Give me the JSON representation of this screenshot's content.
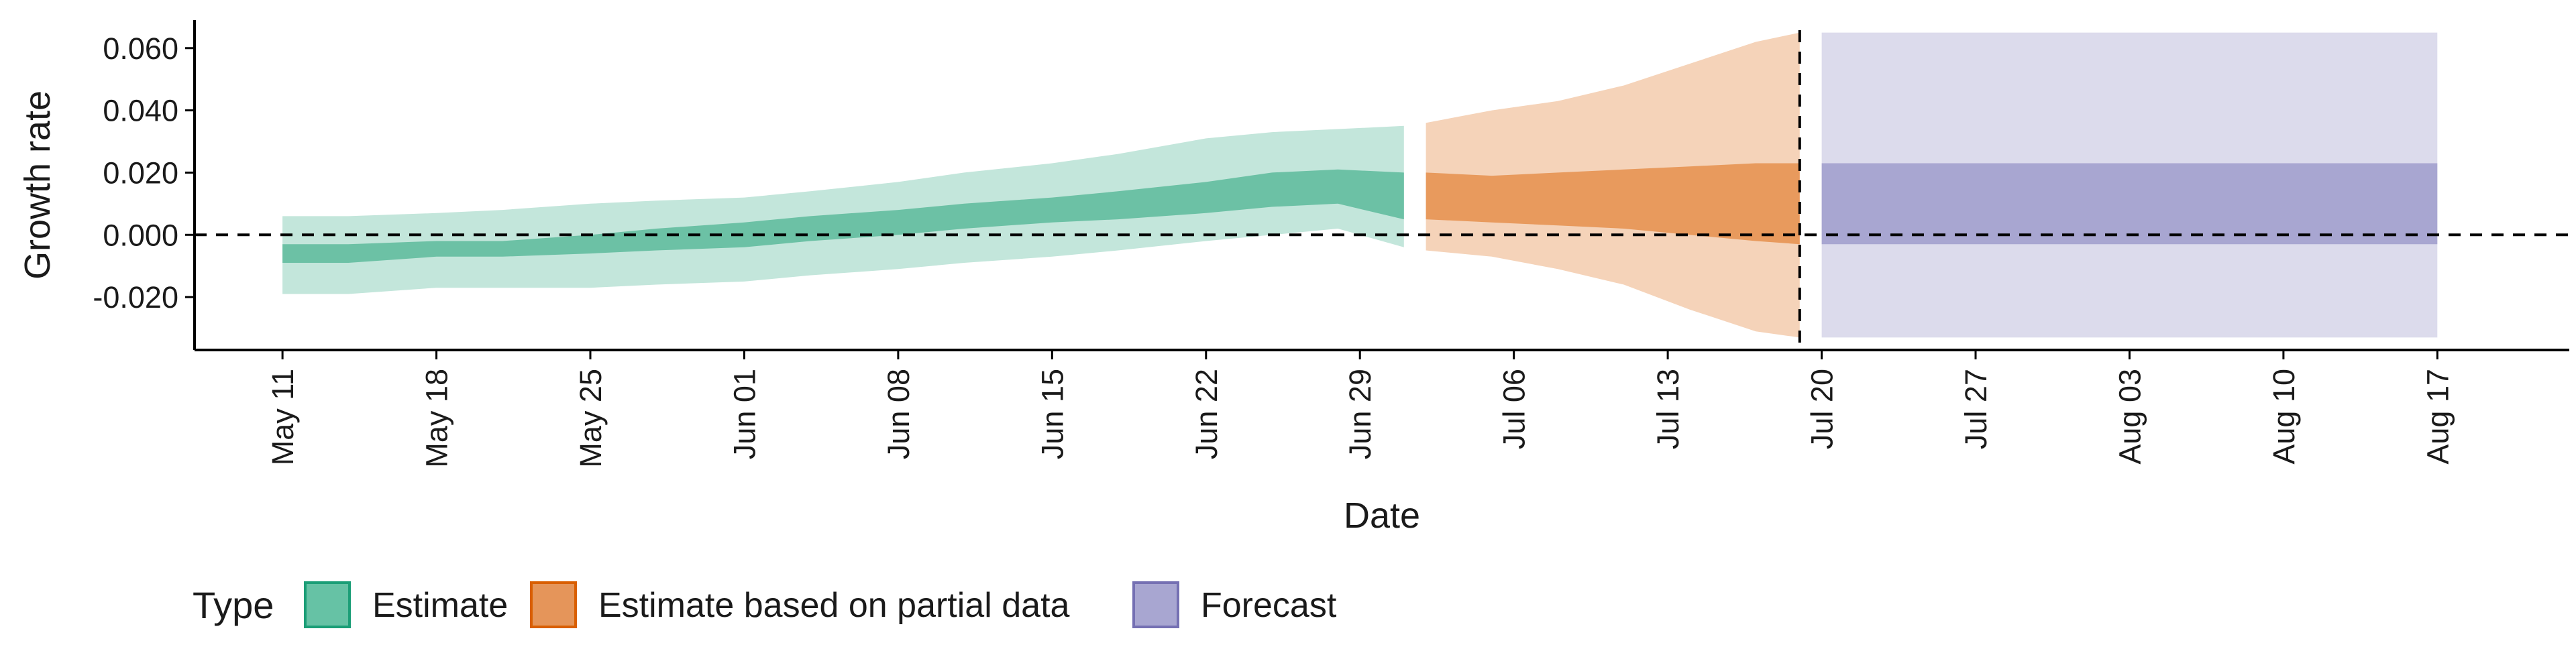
{
  "chart_data": {
    "type": "area",
    "xlabel": "Date",
    "ylabel": "Growth rate",
    "x_type": "date",
    "xlim": [
      "2021-05-07",
      "2021-08-23"
    ],
    "ylim": [
      -0.037,
      0.069
    ],
    "y_ticks": [
      -0.02,
      0.0,
      0.02,
      0.04,
      0.06
    ],
    "y_tick_labels": [
      "-0.020",
      "0.000",
      "0.020",
      "0.040",
      "0.060"
    ],
    "x_ticks": [
      "2021-05-11",
      "2021-05-18",
      "2021-05-25",
      "2021-06-01",
      "2021-06-08",
      "2021-06-15",
      "2021-06-22",
      "2021-06-29",
      "2021-07-06",
      "2021-07-13",
      "2021-07-20",
      "2021-07-27",
      "2021-08-03",
      "2021-08-10",
      "2021-08-17"
    ],
    "x_tick_labels": [
      "May 11",
      "May 18",
      "May 25",
      "Jun 01",
      "Jun 08",
      "Jun 15",
      "Jun 22",
      "Jun 29",
      "Jul 06",
      "Jul 13",
      "Jul 20",
      "Jul 27",
      "Aug 03",
      "Aug 10",
      "Aug 17"
    ],
    "hline_y": 0.0,
    "vline_x": "2021-07-19",
    "grid": false,
    "legend": {
      "title": "Type",
      "position": "bottom-left",
      "items": [
        {
          "label": "Estimate",
          "color": "#66c2a5",
          "border": "#1b9e77"
        },
        {
          "label": "Estimate based on partial data",
          "color": "#e5955a",
          "border": "#d95f02"
        },
        {
          "label": "Forecast",
          "color": "#a8a6d1",
          "border": "#7570b3"
        }
      ]
    },
    "series": [
      {
        "name": "Estimate",
        "color": "#66c2a5",
        "outer_fill": "#c3e6db",
        "inner_fill": "#6cc1a5",
        "points": [
          {
            "x": "2021-05-11",
            "lo90": -0.019,
            "hi90": 0.006,
            "lo50": -0.009,
            "hi50": -0.003
          },
          {
            "x": "2021-05-14",
            "lo90": -0.019,
            "hi90": 0.006,
            "lo50": -0.009,
            "hi50": -0.003
          },
          {
            "x": "2021-05-18",
            "lo90": -0.017,
            "hi90": 0.007,
            "lo50": -0.007,
            "hi50": -0.002
          },
          {
            "x": "2021-05-21",
            "lo90": -0.017,
            "hi90": 0.008,
            "lo50": -0.007,
            "hi50": -0.002
          },
          {
            "x": "2021-05-25",
            "lo90": -0.017,
            "hi90": 0.01,
            "lo50": -0.006,
            "hi50": 0.0
          },
          {
            "x": "2021-05-28",
            "lo90": -0.016,
            "hi90": 0.011,
            "lo50": -0.005,
            "hi50": 0.002
          },
          {
            "x": "2021-06-01",
            "lo90": -0.015,
            "hi90": 0.012,
            "lo50": -0.004,
            "hi50": 0.004
          },
          {
            "x": "2021-06-04",
            "lo90": -0.013,
            "hi90": 0.014,
            "lo50": -0.002,
            "hi50": 0.006
          },
          {
            "x": "2021-06-08",
            "lo90": -0.011,
            "hi90": 0.017,
            "lo50": 0.0,
            "hi50": 0.008
          },
          {
            "x": "2021-06-11",
            "lo90": -0.009,
            "hi90": 0.02,
            "lo50": 0.002,
            "hi50": 0.01
          },
          {
            "x": "2021-06-15",
            "lo90": -0.007,
            "hi90": 0.023,
            "lo50": 0.004,
            "hi50": 0.012
          },
          {
            "x": "2021-06-18",
            "lo90": -0.005,
            "hi90": 0.026,
            "lo50": 0.005,
            "hi50": 0.014
          },
          {
            "x": "2021-06-22",
            "lo90": -0.002,
            "hi90": 0.031,
            "lo50": 0.007,
            "hi50": 0.017
          },
          {
            "x": "2021-06-25",
            "lo90": 0.0,
            "hi90": 0.033,
            "lo50": 0.009,
            "hi50": 0.02
          },
          {
            "x": "2021-06-28",
            "lo90": 0.002,
            "hi90": 0.034,
            "lo50": 0.01,
            "hi50": 0.021
          },
          {
            "x": "2021-07-01",
            "lo90": -0.004,
            "hi90": 0.035,
            "lo50": 0.005,
            "hi50": 0.02
          }
        ]
      },
      {
        "name": "Estimate based on partial data",
        "color": "#e5955a",
        "outer_fill": "#f5d3b9",
        "inner_fill": "#e89a5d",
        "points": [
          {
            "x": "2021-07-02",
            "lo90": -0.005,
            "hi90": 0.036,
            "lo50": 0.005,
            "hi50": 0.02
          },
          {
            "x": "2021-07-05",
            "lo90": -0.007,
            "hi90": 0.04,
            "lo50": 0.004,
            "hi50": 0.019
          },
          {
            "x": "2021-07-08",
            "lo90": -0.011,
            "hi90": 0.043,
            "lo50": 0.003,
            "hi50": 0.02
          },
          {
            "x": "2021-07-11",
            "lo90": -0.016,
            "hi90": 0.048,
            "lo50": 0.002,
            "hi50": 0.021
          },
          {
            "x": "2021-07-14",
            "lo90": -0.024,
            "hi90": 0.055,
            "lo50": 0.0,
            "hi50": 0.022
          },
          {
            "x": "2021-07-17",
            "lo90": -0.031,
            "hi90": 0.062,
            "lo50": -0.002,
            "hi50": 0.023
          },
          {
            "x": "2021-07-19",
            "lo90": -0.033,
            "hi90": 0.065,
            "lo50": -0.003,
            "hi50": 0.023
          }
        ]
      },
      {
        "name": "Forecast",
        "color": "#a8a6d1",
        "outer_fill": "#dcdbec",
        "inner_fill": "#a8a6d1",
        "points": [
          {
            "x": "2021-07-20",
            "lo90": -0.033,
            "hi90": 0.065,
            "lo50": -0.003,
            "hi50": 0.023
          },
          {
            "x": "2021-08-17",
            "lo90": -0.033,
            "hi90": 0.065,
            "lo50": -0.003,
            "hi50": 0.023
          }
        ]
      }
    ]
  }
}
